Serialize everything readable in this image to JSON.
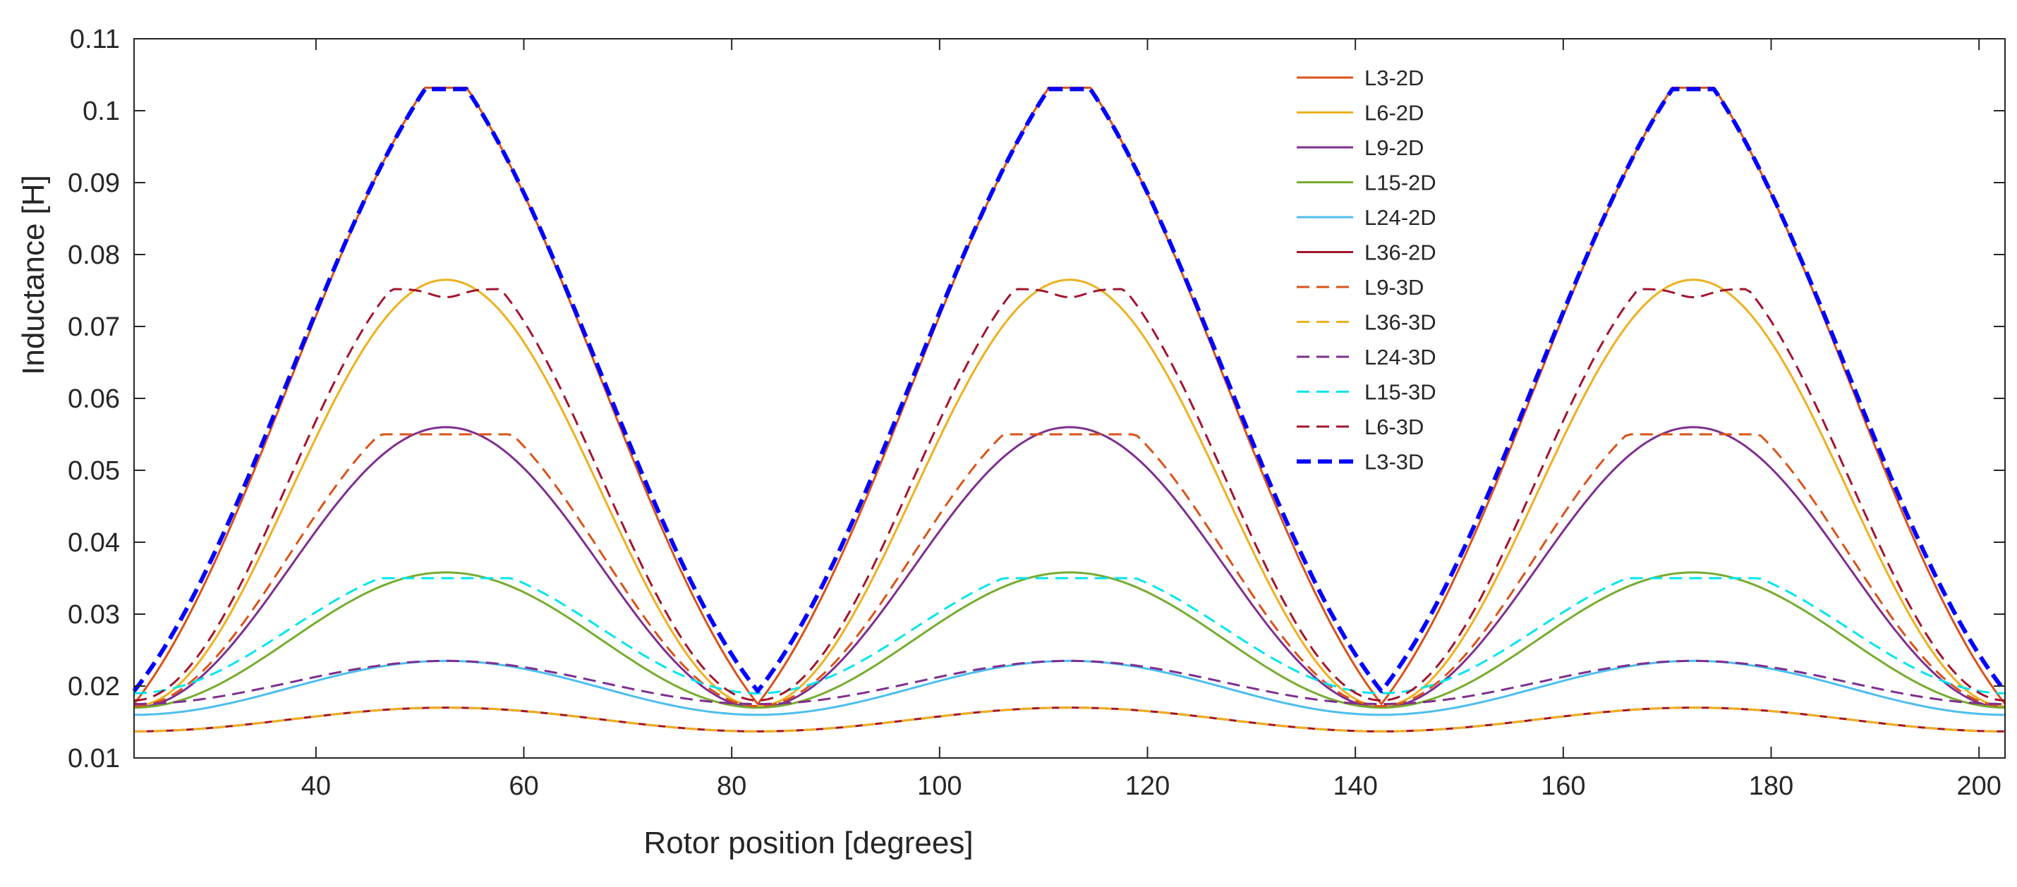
{
  "chart_data": {
    "type": "line",
    "title": "",
    "xlabel": "Rotor position [degrees]",
    "ylabel": "Inductance [H]",
    "xlim": [
      22.5,
      202.5
    ],
    "ylim": [
      0.01,
      0.11
    ],
    "xticks": [
      40,
      60,
      80,
      100,
      120,
      140,
      160,
      180,
      200
    ],
    "yticks": [
      0.01,
      0.02,
      0.03,
      0.04,
      0.05,
      0.06,
      0.07,
      0.08,
      0.09,
      0.1,
      0.11
    ],
    "xtick_labels": [
      "40",
      "60",
      "80",
      "100",
      "120",
      "140",
      "160",
      "180",
      "200"
    ],
    "ytick_labels": [
      "0.01",
      "0.02",
      "0.03",
      "0.04",
      "0.05",
      "0.06",
      "0.07",
      "0.08",
      "0.09",
      "0.1",
      "0.11"
    ],
    "grid": false,
    "legend_position": "top-center",
    "period_deg": 60,
    "peak_positions": [
      52.5,
      112.5,
      172.5
    ],
    "valley_positions": [
      22.5,
      82.5,
      142.5,
      202.5
    ],
    "series": [
      {
        "name": "L3-2D",
        "color": "#D95319",
        "style": "solid",
        "width": 3,
        "valley": 0.0175,
        "peak": 0.1032,
        "shape": "sharp"
      },
      {
        "name": "L6-2D",
        "color": "#EDB120",
        "style": "solid",
        "width": 3,
        "valley": 0.0172,
        "peak": 0.0765,
        "shape": "round"
      },
      {
        "name": "L9-2D",
        "color": "#7E2F8E",
        "style": "solid",
        "width": 3,
        "valley": 0.017,
        "peak": 0.056,
        "shape": "round"
      },
      {
        "name": "L15-2D",
        "color": "#77AC30",
        "style": "solid",
        "width": 3,
        "valley": 0.017,
        "peak": 0.0358,
        "shape": "round"
      },
      {
        "name": "L24-2D",
        "color": "#4DBEEE",
        "style": "solid",
        "width": 3,
        "valley": 0.016,
        "peak": 0.0235,
        "shape": "round"
      },
      {
        "name": "L36-2D",
        "color": "#A2142F",
        "style": "solid",
        "width": 3,
        "valley": 0.0137,
        "peak": 0.017,
        "shape": "round"
      },
      {
        "name": "L9-3D",
        "color": "#D95319",
        "style": "dashed",
        "width": 3,
        "valley": 0.0172,
        "peak": 0.055,
        "shape": "flat"
      },
      {
        "name": "L36-3D",
        "color": "#EDB120",
        "style": "dashed",
        "width": 3,
        "valley": 0.0137,
        "peak": 0.017,
        "shape": "round"
      },
      {
        "name": "L24-3D",
        "color": "#7E2F8E",
        "style": "dashed",
        "width": 3,
        "valley": 0.0175,
        "peak": 0.0235,
        "shape": "round"
      },
      {
        "name": "L15-3D",
        "color": "#00E5EE",
        "style": "dashed",
        "width": 3,
        "valley": 0.019,
        "peak": 0.035,
        "shape": "flat"
      },
      {
        "name": "L6-3D",
        "color": "#A2142F",
        "style": "dashed",
        "width": 3,
        "valley": 0.018,
        "peak": 0.0752,
        "shape": "notch"
      },
      {
        "name": "L3-3D",
        "color": "#0000FF",
        "style": "dashed",
        "width": 6,
        "valley": 0.0193,
        "peak": 0.103,
        "shape": "sharp"
      }
    ]
  }
}
